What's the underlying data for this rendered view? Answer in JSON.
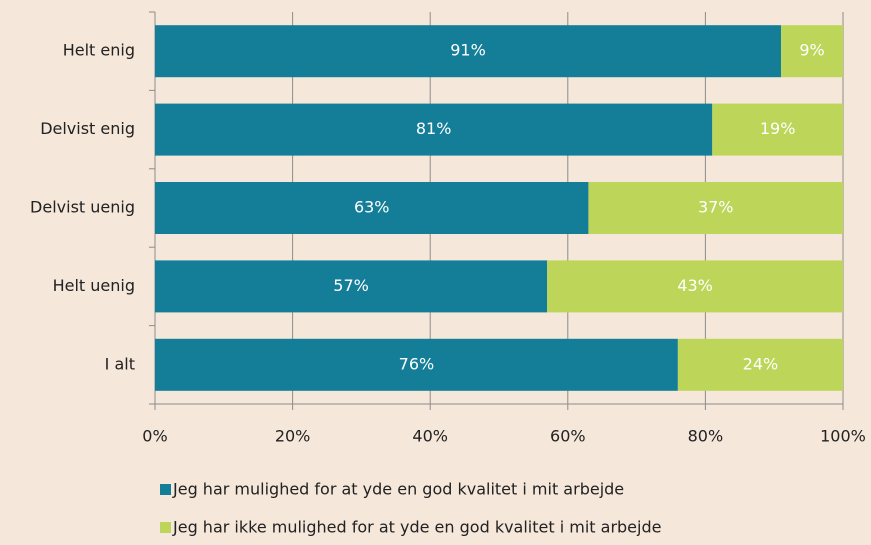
{
  "chart_data": {
    "type": "stacked_bar_horizontal",
    "categories": [
      "Helt enig",
      "Delvist enig",
      "Delvist uenig",
      "Helt uenig",
      "I alt"
    ],
    "series": [
      {
        "name": "Jeg har mulighed for at yde en god kvalitet i mit arbejde",
        "color": "#147e99",
        "values": [
          91,
          81,
          63,
          57,
          76
        ],
        "value_labels": [
          "91%",
          "81%",
          "63%",
          "57%",
          "76%"
        ]
      },
      {
        "name": "Jeg har ikke mulighed for at yde en god kvalitet i mit arbejde",
        "color": "#bdd65a",
        "values": [
          9,
          19,
          37,
          43,
          24
        ],
        "value_labels": [
          "9%",
          "19%",
          "37%",
          "43%",
          "24%"
        ]
      }
    ],
    "xlim": [
      0,
      100
    ],
    "xticks": [
      {
        "value": 0,
        "label": "0%"
      },
      {
        "value": 20,
        "label": "20%"
      },
      {
        "value": 40,
        "label": "40%"
      },
      {
        "value": 60,
        "label": "60%"
      },
      {
        "value": 80,
        "label": "80%"
      },
      {
        "value": 100,
        "label": "100%"
      }
    ],
    "grid": true,
    "legend": "bottom"
  }
}
